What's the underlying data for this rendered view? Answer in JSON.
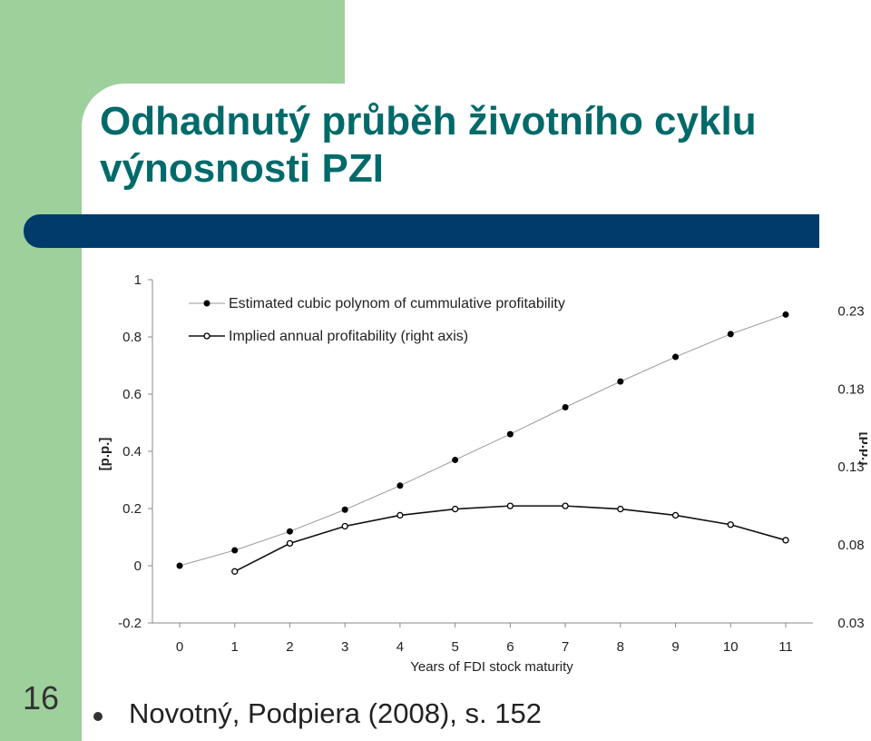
{
  "theme": {
    "green": "#9dd09a",
    "title_color": "#006a6a",
    "bar_color": "#003b6b"
  },
  "slide": {
    "title": "Odhadnutý průběh životního cyklu výnosnosti PZI",
    "number": "16",
    "source": "Novotný, Podpiera (2008), s. 152"
  },
  "chart_data": {
    "type": "line",
    "xlabel": "Years of FDI stock maturity",
    "ylabel_left": "[p.p.]",
    "ylabel_right": "[p.p.]",
    "x": [
      0,
      1,
      2,
      3,
      4,
      5,
      6,
      7,
      8,
      9,
      10,
      11
    ],
    "x_ticks": [
      "0",
      "1",
      "2",
      "3",
      "4",
      "5",
      "6",
      "7",
      "8",
      "9",
      "10",
      "11"
    ],
    "y_left_range": [
      -0.2,
      1
    ],
    "y_left_ticks": [
      "-0.2",
      "0",
      "0.2",
      "0.4",
      "0.6",
      "0.8",
      "1"
    ],
    "y_right_range": [
      0.03,
      0.25
    ],
    "y_right_ticks": [
      "0.03",
      "0.08",
      "0.13",
      "0.18",
      "0.23"
    ],
    "legend_position": "top-left",
    "series": [
      {
        "name": "Estimated cubic polynom of cummulative profitability",
        "axis": "left",
        "marker": "filled",
        "values": [
          0.0,
          0.054,
          0.12,
          0.196,
          0.28,
          0.37,
          0.46,
          0.554,
          0.644,
          0.73,
          0.81,
          0.878
        ]
      },
      {
        "name": "Implied annual profitability (right axis)",
        "axis": "right",
        "marker": "open",
        "values": [
          null,
          0.063,
          0.081,
          0.092,
          0.099,
          0.103,
          0.105,
          0.105,
          0.103,
          0.099,
          0.093,
          0.083
        ]
      }
    ]
  }
}
